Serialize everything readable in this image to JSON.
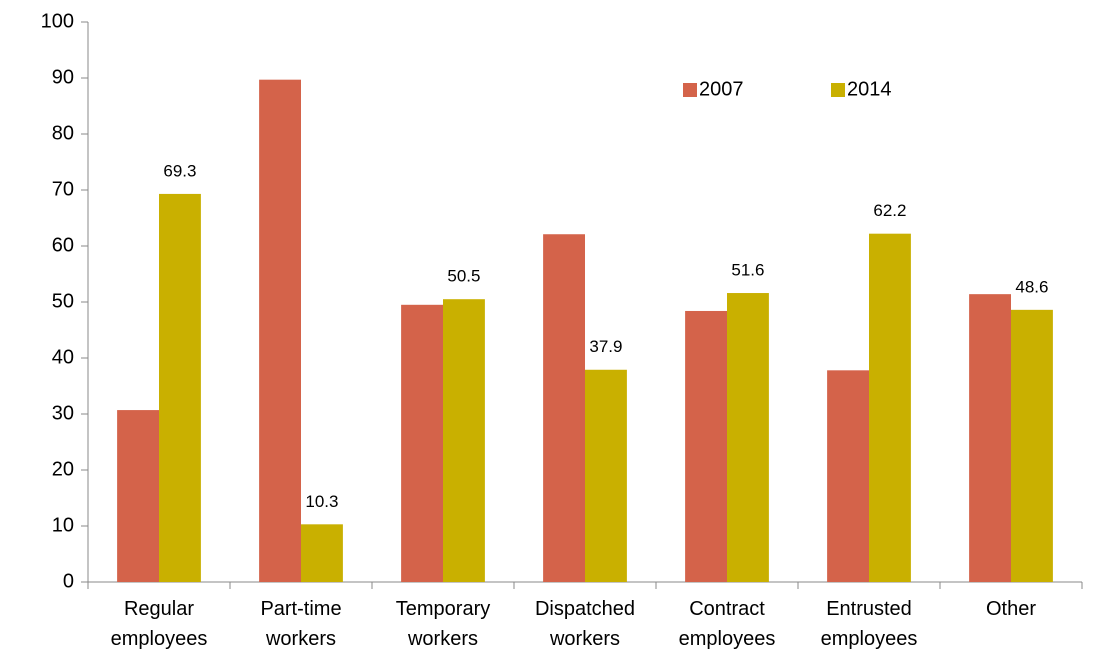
{
  "chart_data": {
    "type": "bar",
    "categories": [
      "Regular employees",
      "Part-time workers",
      "Temporary workers",
      "Dispatched workers",
      "Contract employees",
      "Entrusted employees",
      "Other"
    ],
    "series": [
      {
        "name": "2007",
        "color": "#d4634a",
        "values": [
          30.7,
          89.7,
          49.5,
          62.1,
          48.4,
          37.8,
          51.4
        ]
      },
      {
        "name": "2014",
        "color": "#c9b000",
        "values": [
          69.3,
          10.3,
          50.5,
          37.9,
          51.6,
          62.2,
          48.6
        ],
        "show_labels": true
      }
    ],
    "ylim": [
      0,
      100
    ],
    "yticks": [
      0,
      10,
      20,
      30,
      40,
      50,
      60,
      70,
      80,
      90,
      100
    ],
    "grid": false,
    "legend": "top-right"
  }
}
